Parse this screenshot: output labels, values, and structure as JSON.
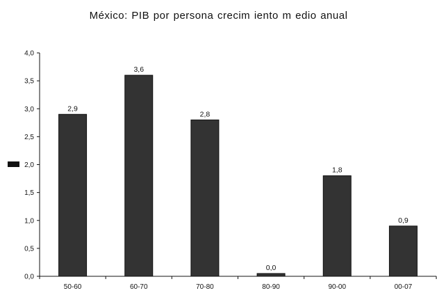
{
  "chart_data": {
    "type": "bar",
    "title": "México: PIB por persona crecim iento m edio anual",
    "xlabel": "",
    "ylabel": "",
    "categories": [
      "50-60",
      "60-70",
      "70-80",
      "80-90",
      "90-00",
      "00-07"
    ],
    "values": [
      2.9,
      3.6,
      2.8,
      0.0,
      1.8,
      0.9
    ],
    "data_labels": [
      "2,9",
      "3,6",
      "2,8",
      "0,0",
      "1,8",
      "0,9"
    ],
    "ylim": [
      0,
      4.0
    ],
    "yticks": [
      0,
      0.5,
      1.0,
      1.5,
      2.0,
      2.5,
      3.0,
      3.5,
      4.0
    ],
    "ytick_labels": [
      "0,0",
      "0,5",
      "1,0",
      "1,5",
      "2,0",
      "2,5",
      "3,0",
      "3,5",
      "4,0"
    ],
    "grid": false,
    "legend": "left",
    "bar_color": "#333333",
    "zero_bar_height": 0.05
  }
}
